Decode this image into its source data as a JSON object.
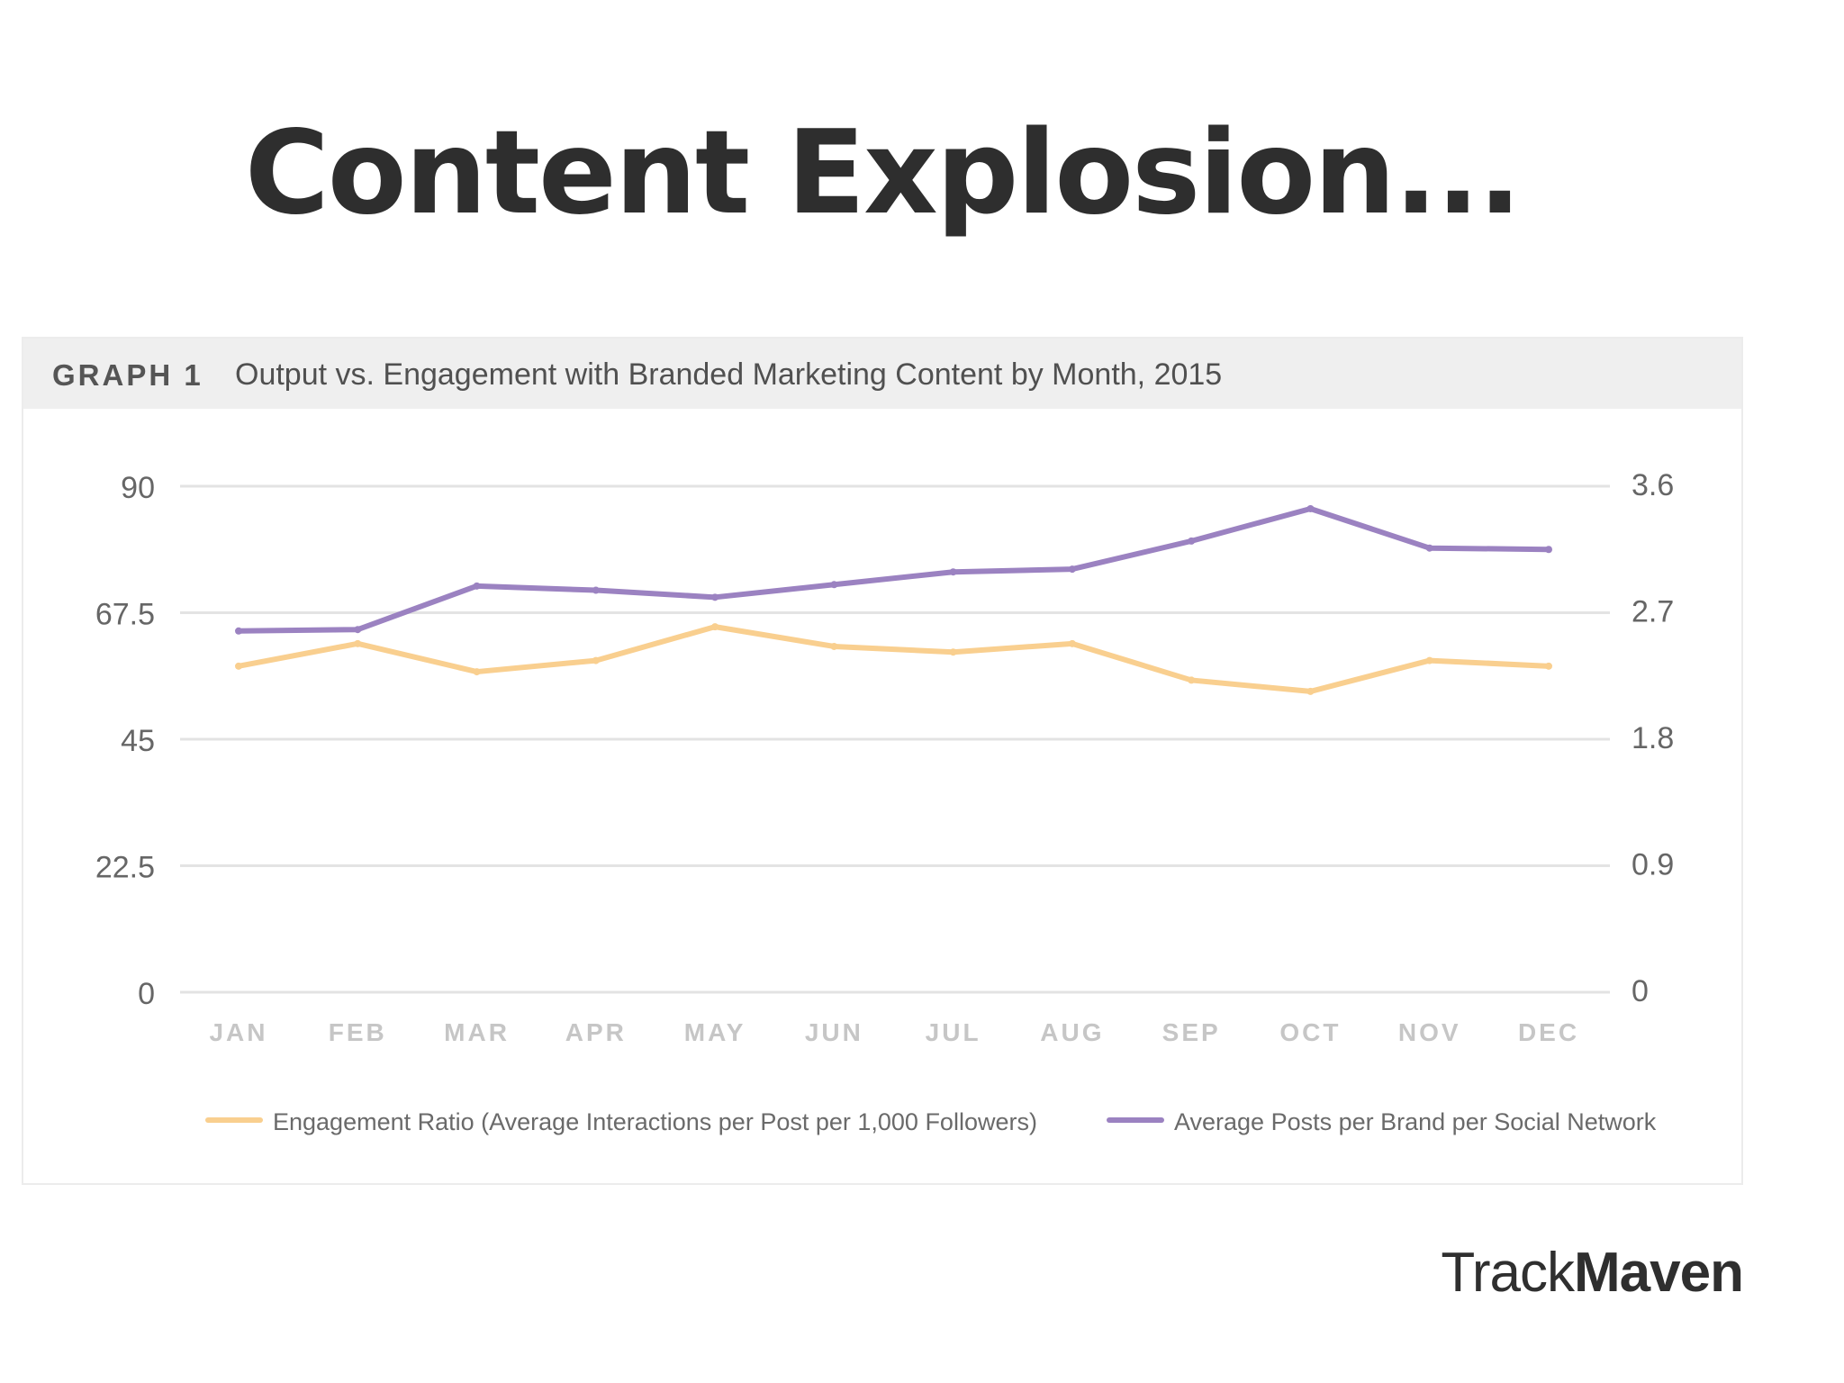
{
  "slide": {
    "title": "Content Explosion...",
    "brand_light": "Track",
    "brand_bold": "Maven"
  },
  "chart_data": {
    "type": "line",
    "label": "GRAPH 1",
    "title": "Output vs. Engagement with Branded Marketing Content by Month, 2015",
    "categories": [
      "JAN",
      "FEB",
      "MAR",
      "APR",
      "MAY",
      "JUN",
      "JUL",
      "AUG",
      "SEP",
      "OCT",
      "NOV",
      "DEC"
    ],
    "y_left": {
      "ticks": [
        "90",
        "67.5",
        "45",
        "22.5",
        "0"
      ],
      "range": [
        0,
        90
      ]
    },
    "y_right": {
      "ticks": [
        "3.6",
        "2.7",
        "1.8",
        "0.9",
        "0"
      ],
      "range": [
        0,
        3.6
      ]
    },
    "grid": true,
    "legend_position": "bottom",
    "series": [
      {
        "name": "Engagement Ratio (Average Interactions per Post per 1,000 Followers)",
        "axis": "left",
        "color": "#f9cf8f",
        "values": [
          58,
          62,
          57,
          59,
          65,
          61.5,
          60.5,
          62,
          55.5,
          53.5,
          59,
          58
        ]
      },
      {
        "name": "Average Posts per Brand per Social Network",
        "axis": "right",
        "color": "#9b82c1",
        "values": [
          2.57,
          2.58,
          2.89,
          2.86,
          2.81,
          2.9,
          2.99,
          3.01,
          3.21,
          3.44,
          3.16,
          3.15
        ]
      }
    ]
  }
}
